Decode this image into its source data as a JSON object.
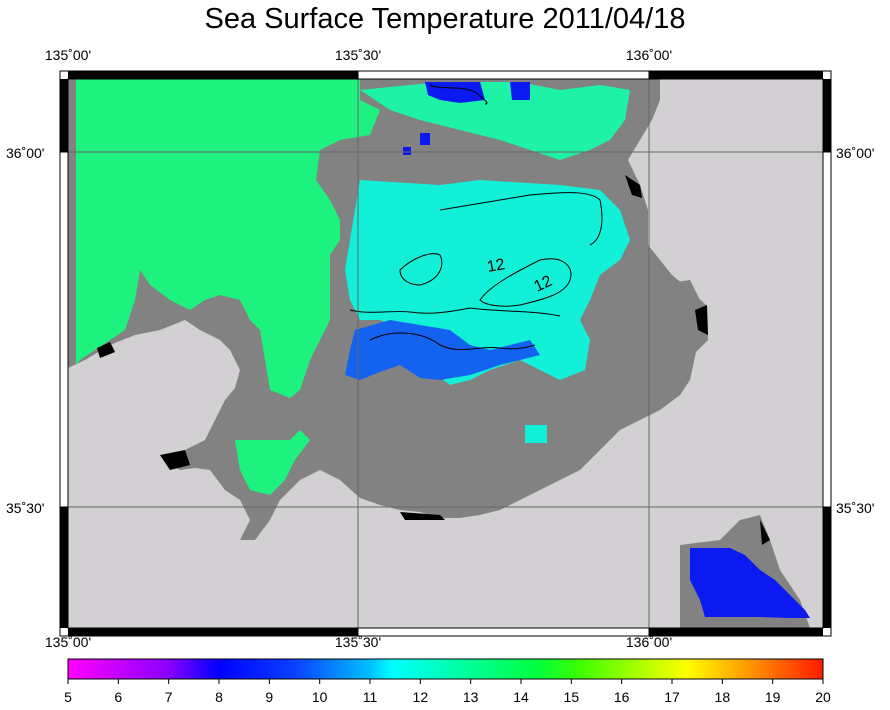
{
  "title": "Sea Surface Temperature 2011/04/18",
  "axes": {
    "x_ticks": [
      "135˚00'",
      "135˚30'",
      "136˚00'"
    ],
    "y_ticks": [
      "36˚00'",
      "35˚30'"
    ]
  },
  "contours": [
    {
      "label": "12"
    },
    {
      "label": "12"
    }
  ],
  "colorbar": {
    "min": 5,
    "max": 20,
    "labels": [
      "5",
      "6",
      "7",
      "8",
      "9",
      "10",
      "11",
      "12",
      "13",
      "14",
      "15",
      "16",
      "17",
      "18",
      "19",
      "20"
    ]
  },
  "colors": {
    "land": "#d3d0d3",
    "no_data": "#828282",
    "sst_13": "#1ef27e",
    "sst_11": "#12f0d8",
    "sst_9": "#1462f0",
    "sst_8": "#0a1af0"
  }
}
